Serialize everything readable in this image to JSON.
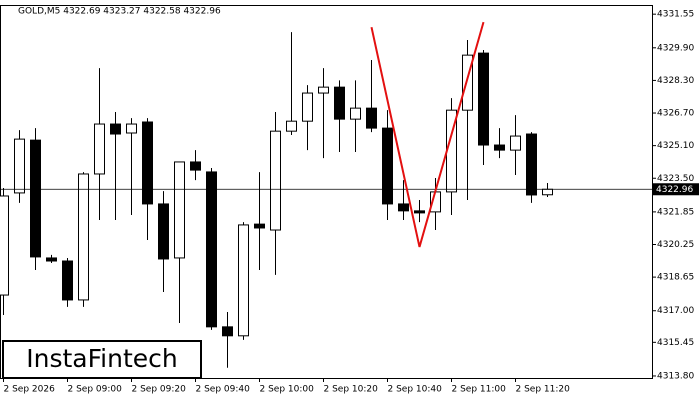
{
  "chart_data": {
    "type": "candlestick",
    "header": "GOLD,M5  4322.69 4323.27 4322.58 4322.96",
    "watermark": "InstaFintech",
    "categories": [
      "2 Sep 2026",
      null,
      null,
      null,
      "2 Sep 09:00",
      null,
      null,
      null,
      "2 Sep 09:20",
      null,
      null,
      null,
      "2 Sep 09:40",
      null,
      null,
      null,
      "2 Sep 10:00",
      null,
      null,
      null,
      "2 Sep 10:20",
      null,
      null,
      null,
      "2 Sep 10:40",
      null,
      null,
      null,
      "2 Sep 11:00",
      null,
      null,
      null,
      "2 Sep 11:20",
      null,
      null
    ],
    "open": [
      4317.77,
      4322.78,
      4325.37,
      4319.59,
      4319.44,
      4317.53,
      4323.71,
      4326.16,
      4325.72,
      4326.26,
      4322.24,
      4319.59,
      4324.3,
      4323.81,
      4316.21,
      4315.77,
      4321.25,
      4320.96,
      4325.81,
      4326.3,
      4327.68,
      4327.97,
      4326.4,
      4326.94,
      4325.96,
      4322.24,
      4321.9,
      4321.85,
      4322.83,
      4326.84,
      4329.64,
      4325.13,
      4324.88,
      4325.67,
      4322.69
    ],
    "high": [
      4323.02,
      4325.86,
      4325.96,
      4319.74,
      4319.59,
      4323.8,
      4328.9,
      4326.75,
      4326.45,
      4326.45,
      4322.87,
      4324.3,
      4324.88,
      4324.0,
      4316.94,
      4321.35,
      4323.8,
      4326.75,
      4330.67,
      4328.07,
      4328.9,
      4328.3,
      4328.3,
      4329.3,
      4326.84,
      4323.41,
      4322.43,
      4323.51,
      4327.43,
      4330.28,
      4329.79,
      4325.96,
      4326.6,
      4325.76,
      4323.27
    ],
    "low": [
      4316.79,
      4322.29,
      4319.0,
      4319.34,
      4317.19,
      4317.19,
      4321.45,
      4321.45,
      4321.7,
      4320.47,
      4317.92,
      4316.4,
      4323.41,
      4316.06,
      4314.2,
      4315.57,
      4319.0,
      4318.76,
      4325.62,
      4324.88,
      4324.49,
      4324.79,
      4324.79,
      4325.76,
      4321.45,
      4321.45,
      4321.35,
      4320.96,
      4321.7,
      4322.43,
      4324.15,
      4324.49,
      4323.66,
      4322.29,
      4322.58
    ],
    "close": [
      4322.63,
      4325.42,
      4319.64,
      4319.44,
      4317.53,
      4323.71,
      4326.16,
      4325.67,
      4326.16,
      4322.24,
      4319.54,
      4324.3,
      4323.9,
      4316.21,
      4315.77,
      4321.21,
      4321.06,
      4325.81,
      4326.3,
      4327.68,
      4327.97,
      4326.4,
      4326.94,
      4325.96,
      4322.24,
      4321.9,
      4321.8,
      4322.83,
      4326.84,
      4329.54,
      4325.13,
      4324.88,
      4325.57,
      4322.68,
      4322.96
    ],
    "price_line": 4322.96,
    "pattern": {
      "color": "#e31010",
      "index": [
        23,
        26,
        30
      ],
      "values": [
        4330.91,
        4320.13,
        4331.16
      ]
    },
    "ylim": [
      4313.7,
      4332.0
    ],
    "yticks": [
      4331.55,
      {
        "value": 4329.9,
        "label": "4329.90"
      },
      {
        "value": 4328.3,
        "label": "4328.30"
      },
      {
        "value": 4326.7,
        "label": "4326.70"
      },
      {
        "value": 4325.1,
        "label": "4325.10"
      },
      {
        "value": 4323.5,
        "label": "4323.50"
      },
      4321.85,
      4320.25,
      4318.65,
      {
        "value": 4317,
        "label": "4317.00"
      },
      4315.45,
      {
        "value": 4313.8,
        "label": "4313.80"
      }
    ]
  }
}
